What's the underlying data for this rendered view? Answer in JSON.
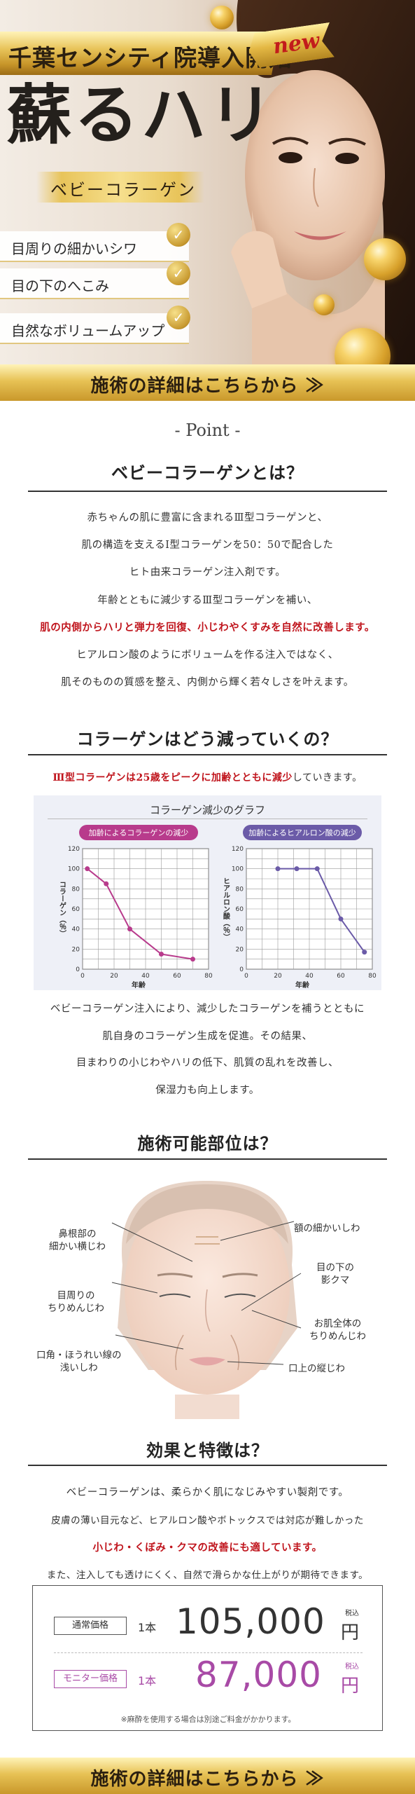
{
  "hero": {
    "banner_text": "千葉センシティ院導入開始",
    "new_label": "new",
    "title": "蘇るハリ",
    "subtitle": "ベビーコラーゲン",
    "checks": [
      "目周りの細かいシワ",
      "目の下のへこみ",
      "自然なボリュームアップ"
    ],
    "cta": "施術の詳細はこちらから ≫"
  },
  "point_label": "- Point -",
  "sec1": {
    "heading": "ベビーコラーゲンとは？",
    "lines": [
      "赤ちゃんの肌に豊富に含まれるⅢ型コラーゲンと、",
      "肌の構造を支えるⅠ型コラーゲンを50：50で配合した",
      "ヒト由来コラーゲン注入剤です。",
      "年齢とともに減少するⅢ型コラーゲンを補い、",
      "肌の内側からハリと弾力を回復、小じわやくすみを自然に改善します。",
      "ヒアルロン酸のようにボリュームを作る注入ではなく、",
      "肌そのものの質感を整え、内側から輝く若々しさを叶えます。"
    ]
  },
  "sec2": {
    "heading": "コラーゲンはどう減っていくの？",
    "lead_red": "Ⅲ型コラーゲンは25歳をピークに加齢とともに減少",
    "lead_rest": "していきます。",
    "after_lines": [
      "ベビーコラーゲン注入により、減少したコラーゲンを補うとともに",
      "肌自身のコラーゲン生成を促進。その結果、",
      "目まわりの小じわやハリの低下、肌質の乱れを改善し、",
      "保湿力も向上します。"
    ]
  },
  "chart_data": [
    {
      "type": "line",
      "title": "コラーゲン減少のグラフ",
      "subtitle": "加齢によるコラーゲンの減少",
      "xlabel": "年齢",
      "ylabel": "コラーゲン（％）",
      "xlim": [
        0,
        80
      ],
      "ylim": [
        0,
        120
      ],
      "xticks": [
        0,
        20,
        40,
        60,
        80
      ],
      "yticks": [
        0,
        20,
        40,
        60,
        80,
        100,
        120
      ],
      "grid": true,
      "color": "#b83b8c",
      "x": [
        3,
        15,
        30,
        50,
        70
      ],
      "y": [
        100,
        85,
        40,
        15,
        10
      ]
    },
    {
      "type": "line",
      "subtitle": "加齢によるヒアルロン酸の減少",
      "xlabel": "年齢",
      "ylabel": "ヒアルロン酸（％）",
      "xlim": [
        0,
        80
      ],
      "ylim": [
        0,
        120
      ],
      "xticks": [
        0,
        20,
        40,
        60,
        80
      ],
      "yticks": [
        0,
        20,
        40,
        60,
        80,
        100,
        120
      ],
      "grid": true,
      "color": "#6b5ba8",
      "x": [
        20,
        32,
        45,
        60,
        75
      ],
      "y": [
        100,
        100,
        100,
        50,
        17
      ]
    }
  ],
  "sec3": {
    "heading": "施術可能部位は？",
    "labels": {
      "nose_root": [
        "鼻根部の",
        "細かい横じわ"
      ],
      "forehead": [
        "額の細かいしわ"
      ],
      "eye_around": [
        "目周りの",
        "ちりめんじわ"
      ],
      "under_eye": [
        "目の下の",
        "影クマ"
      ],
      "whole_skin": [
        "お肌全体の",
        "ちりめんじわ"
      ],
      "mouth_corner": [
        "口角・ほうれい線の",
        "浅いしわ"
      ],
      "upper_lip": [
        "口上の縦じわ"
      ]
    }
  },
  "sec4": {
    "heading": "効果と特徴は？",
    "line1": "ベビーコラーゲンは、柔らかく肌になじみやすい製剤です。",
    "line2": "皮膚の薄い目元など、ヒアルロン酸やボトックスでは対応が難しかった",
    "line3_red": "小じわ・くぼみ・クマの改善にも適しています。",
    "line4": "また、注入しても透けにくく、自然で滑らかな仕上がりが期待できます。"
  },
  "price": {
    "regular_label": "通常価格",
    "regular_unit": "1本",
    "regular_price": "105,000",
    "monitor_label": "モニター価格",
    "monitor_unit": "1本",
    "monitor_price": "87,000",
    "tax": "税込",
    "yen": "円",
    "note": "※麻酔を使用する場合は別途ご料金がかかります。",
    "colors": {
      "monitor": "#a84aa6",
      "regular": "#333333"
    }
  },
  "footer_cta": "施術の詳細はこちらから ≫"
}
